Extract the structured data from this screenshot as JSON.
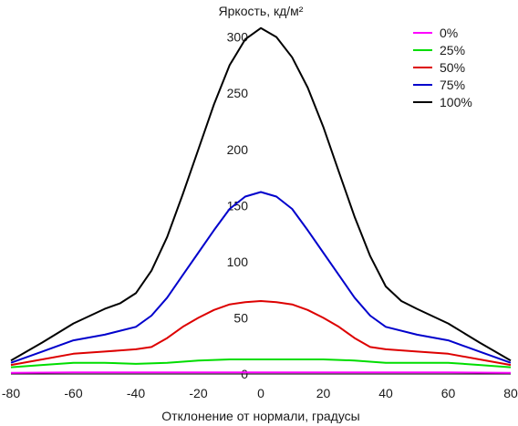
{
  "chart_data": {
    "type": "line",
    "title": "",
    "ylabel": "Яркость, кд/м²",
    "xlabel": "Отклонение от нормали, градусы",
    "xlim": [
      -80,
      80
    ],
    "ylim": [
      0,
      320
    ],
    "x_ticks": [
      -80,
      -60,
      -40,
      -20,
      0,
      20,
      40,
      60,
      80
    ],
    "y_ticks": [
      0,
      50,
      100,
      150,
      200,
      250,
      300
    ],
    "grid": false,
    "legend_position": "top-right",
    "series": [
      {
        "name": "0%",
        "color": "#ff00ff",
        "points": [
          [
            -80,
            1
          ],
          [
            -60,
            1.5
          ],
          [
            -40,
            1.5
          ],
          [
            -20,
            1.5
          ],
          [
            0,
            1.5
          ],
          [
            20,
            1.5
          ],
          [
            40,
            1.5
          ],
          [
            60,
            1.5
          ],
          [
            80,
            1
          ]
        ]
      },
      {
        "name": "25%",
        "color": "#00dd00",
        "points": [
          [
            -80,
            6
          ],
          [
            -70,
            8
          ],
          [
            -60,
            10
          ],
          [
            -50,
            10
          ],
          [
            -40,
            9
          ],
          [
            -30,
            10
          ],
          [
            -20,
            12
          ],
          [
            -10,
            13
          ],
          [
            0,
            13
          ],
          [
            10,
            13
          ],
          [
            20,
            13
          ],
          [
            30,
            12
          ],
          [
            40,
            10
          ],
          [
            50,
            10
          ],
          [
            60,
            10
          ],
          [
            70,
            8
          ],
          [
            80,
            6
          ]
        ]
      },
      {
        "name": "50%",
        "color": "#dd0000",
        "points": [
          [
            -80,
            8
          ],
          [
            -70,
            13
          ],
          [
            -60,
            18
          ],
          [
            -50,
            20
          ],
          [
            -40,
            22
          ],
          [
            -35,
            24
          ],
          [
            -30,
            32
          ],
          [
            -25,
            42
          ],
          [
            -20,
            50
          ],
          [
            -15,
            57
          ],
          [
            -10,
            62
          ],
          [
            -5,
            64
          ],
          [
            0,
            65
          ],
          [
            5,
            64
          ],
          [
            10,
            62
          ],
          [
            15,
            57
          ],
          [
            20,
            50
          ],
          [
            25,
            42
          ],
          [
            30,
            32
          ],
          [
            35,
            24
          ],
          [
            40,
            22
          ],
          [
            50,
            20
          ],
          [
            60,
            18
          ],
          [
            70,
            13
          ],
          [
            80,
            8
          ]
        ]
      },
      {
        "name": "75%",
        "color": "#0000cc",
        "points": [
          [
            -80,
            10
          ],
          [
            -70,
            20
          ],
          [
            -60,
            30
          ],
          [
            -50,
            35
          ],
          [
            -40,
            42
          ],
          [
            -35,
            52
          ],
          [
            -30,
            68
          ],
          [
            -25,
            88
          ],
          [
            -20,
            108
          ],
          [
            -15,
            128
          ],
          [
            -10,
            147
          ],
          [
            -5,
            158
          ],
          [
            0,
            162
          ],
          [
            5,
            158
          ],
          [
            10,
            147
          ],
          [
            15,
            128
          ],
          [
            20,
            108
          ],
          [
            25,
            88
          ],
          [
            30,
            68
          ],
          [
            35,
            52
          ],
          [
            40,
            42
          ],
          [
            50,
            35
          ],
          [
            60,
            30
          ],
          [
            70,
            20
          ],
          [
            80,
            10
          ]
        ]
      },
      {
        "name": "100%",
        "color": "#000000",
        "points": [
          [
            -80,
            12
          ],
          [
            -70,
            28
          ],
          [
            -60,
            45
          ],
          [
            -50,
            58
          ],
          [
            -45,
            63
          ],
          [
            -40,
            72
          ],
          [
            -35,
            92
          ],
          [
            -30,
            122
          ],
          [
            -25,
            160
          ],
          [
            -20,
            200
          ],
          [
            -15,
            240
          ],
          [
            -10,
            275
          ],
          [
            -5,
            298
          ],
          [
            0,
            308
          ],
          [
            5,
            300
          ],
          [
            10,
            282
          ],
          [
            15,
            255
          ],
          [
            20,
            220
          ],
          [
            25,
            180
          ],
          [
            30,
            140
          ],
          [
            35,
            105
          ],
          [
            40,
            78
          ],
          [
            45,
            65
          ],
          [
            50,
            58
          ],
          [
            60,
            45
          ],
          [
            70,
            28
          ],
          [
            80,
            12
          ]
        ]
      }
    ]
  }
}
